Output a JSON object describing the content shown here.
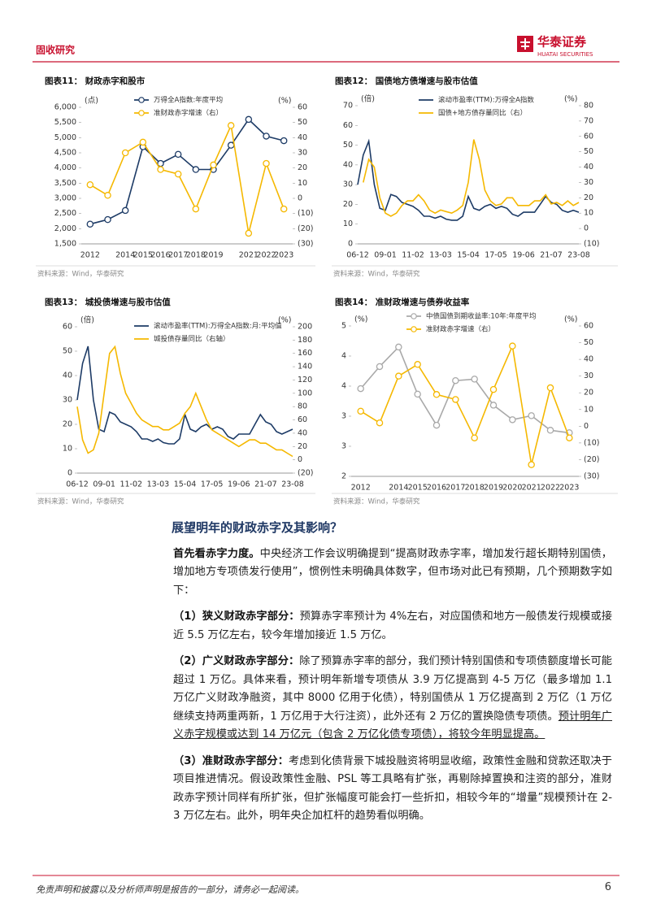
{
  "header": {
    "section": "固收研究",
    "logo_cn": "华泰证券",
    "logo_en": "HUATAI SECURITIES"
  },
  "chart_data": [
    {
      "type": "line",
      "title": "图表11：  财政赤字和股市",
      "y_unit": "(点)",
      "y2_unit": "(%)",
      "marker": true,
      "categories": [
        "2012",
        null,
        "2014",
        "2015",
        "2016",
        "2017",
        "2018",
        "2019",
        null,
        "2021",
        "2022",
        "2023"
      ],
      "series": [
        {
          "name": "万得全A指数:年度平均",
          "color": "#1d3b66",
          "values": [
            2150,
            2300,
            2600,
            4700,
            4150,
            4450,
            3950,
            3950,
            4750,
            5600,
            5050,
            4900
          ]
        },
        {
          "name": "准财政赤字增速（右）",
          "color": "#f5b800",
          "axis": "y2",
          "values": [
            9,
            2,
            30,
            37,
            19,
            16,
            -7,
            22,
            48,
            -23,
            23,
            -7
          ]
        }
      ],
      "ylim": [
        1500,
        6000
      ],
      "yticks": [
        {
          "value": 1500,
          "label": "1,500"
        },
        {
          "value": 2000,
          "label": "2,000"
        },
        {
          "value": 2500,
          "label": "2,500"
        },
        {
          "value": 3000,
          "label": "3,000"
        },
        {
          "value": 3500,
          "label": "3,500"
        },
        {
          "value": 4000,
          "label": "4,000"
        },
        {
          "value": 4500,
          "label": "4,500"
        },
        {
          "value": 5000,
          "label": "5,000"
        },
        {
          "value": 5500,
          "label": "5,500"
        },
        {
          "value": 6000,
          "label": "6,000"
        }
      ],
      "y2lim": [
        -30,
        60
      ],
      "y2ticks": [
        {
          "value": -30,
          "label": "(30)"
        },
        {
          "value": -20,
          "label": "(20)"
        },
        {
          "value": -10,
          "label": "(10)"
        },
        0,
        10,
        20,
        30,
        40,
        50,
        60
      ],
      "source": "资料来源：Wind，华泰研究"
    },
    {
      "type": "line",
      "title": "图表12：  国债地方债增速与股市估值",
      "y_unit": "(倍)",
      "y2_unit": "(%)",
      "marker": false,
      "categories": [
        "06-12",
        null,
        null,
        null,
        null,
        "09-01",
        null,
        null,
        null,
        null,
        "11-02",
        null,
        null,
        null,
        null,
        "13-03",
        null,
        null,
        null,
        null,
        "15-04",
        null,
        null,
        null,
        null,
        "17-05",
        null,
        null,
        null,
        null,
        "19-06",
        null,
        null,
        null,
        null,
        "21-07",
        null,
        null,
        null,
        null,
        "23-08"
      ],
      "series": [
        {
          "name": "滚动市盈率(TTM):万得全A指数",
          "color": "#1d3b66",
          "values": [
            30,
            45,
            52,
            30,
            18,
            17,
            25,
            24,
            21,
            20,
            19,
            17,
            14,
            14,
            13,
            14,
            12.5,
            12,
            12,
            14,
            24,
            18,
            17,
            19,
            20,
            18,
            19,
            18,
            15,
            14,
            16,
            16,
            16,
            20,
            24,
            21,
            20,
            17,
            16,
            17,
            16
          ]
        },
        {
          "name": "国债+地方债存量同比（右）",
          "color": "#f5b800",
          "axis": "y2",
          "values": [
            null,
            30,
            45,
            40,
            20,
            10,
            8,
            10,
            15,
            18,
            18,
            22,
            18,
            12,
            10,
            12,
            11,
            10,
            12,
            15,
            30,
            58,
            45,
            25,
            18,
            15,
            16,
            20,
            20,
            15,
            15,
            15,
            18,
            18,
            22,
            16,
            17,
            15,
            18,
            15,
            17
          ]
        }
      ],
      "ylim": [
        0,
        70
      ],
      "yticks": [
        0,
        10,
        20,
        30,
        40,
        50,
        60,
        70
      ],
      "y2lim": [
        -10,
        80
      ],
      "y2ticks": [
        {
          "value": -10,
          "label": "(10)"
        },
        0,
        10,
        20,
        30,
        40,
        50,
        60,
        70,
        80
      ],
      "source": "资料来源：Wind，华泰研究"
    },
    {
      "type": "line",
      "title": "图表13：  城投债增速与股市估值",
      "y_unit": "(倍)",
      "y2_unit": "(%)",
      "marker": false,
      "categories": [
        "06-12",
        null,
        null,
        null,
        null,
        "09-01",
        null,
        null,
        null,
        null,
        "11-02",
        null,
        null,
        null,
        null,
        "13-03",
        null,
        null,
        null,
        null,
        "15-04",
        null,
        null,
        null,
        null,
        "17-05",
        null,
        null,
        null,
        null,
        "19-06",
        null,
        null,
        null,
        null,
        "21-07",
        null,
        null,
        null,
        null,
        "23-08"
      ],
      "series": [
        {
          "name": "滚动市盈率(TTM):万得全A指数:月:平均值",
          "color": "#1d3b66",
          "values": [
            30,
            45,
            52,
            30,
            18,
            17,
            25,
            24,
            21,
            20,
            19,
            17,
            14,
            14,
            13,
            14,
            12.5,
            12,
            12,
            14,
            24,
            18,
            17,
            19,
            20,
            18,
            19,
            18,
            15,
            14,
            16,
            16,
            16,
            20,
            24,
            21,
            20,
            17,
            16,
            17,
            18
          ]
        },
        {
          "name": "城投债存量同比（右轴）",
          "color": "#f5b800",
          "axis": "y2",
          "values": [
            80,
            30,
            10,
            15,
            40,
            100,
            160,
            170,
            130,
            100,
            85,
            70,
            60,
            55,
            50,
            50,
            45,
            45,
            50,
            55,
            70,
            80,
            100,
            80,
            60,
            45,
            40,
            35,
            30,
            25,
            20,
            25,
            30,
            30,
            25,
            25,
            20,
            15,
            15,
            10,
            5
          ]
        }
      ],
      "ylim": [
        0,
        60
      ],
      "yticks": [
        0,
        10,
        20,
        30,
        40,
        50,
        60
      ],
      "y2lim": [
        -20,
        200
      ],
      "y2ticks": [
        {
          "value": -20,
          "label": "(20)"
        },
        0,
        20,
        40,
        60,
        80,
        100,
        120,
        140,
        160,
        180,
        200
      ],
      "source": "资料来源：Wind，华泰研究"
    },
    {
      "type": "line",
      "title": "图表14：  准财政增速与债券收益率",
      "y_unit": "(%)",
      "y2_unit": "(%)",
      "marker": true,
      "categories": [
        "2012",
        null,
        "2014",
        "2015",
        "2016",
        "2017",
        "2018",
        "2019",
        "2020",
        "2021",
        "2022",
        "2023"
      ],
      "series": [
        {
          "name": "中债国债到期收益率:10年:年度平均",
          "color": "#a9a9a9",
          "values": [
            3.75,
            4.19,
            4.58,
            3.64,
            3.02,
            3.91,
            3.94,
            3.42,
            3.13,
            3.21,
            2.92,
            2.87
          ]
        },
        {
          "name": "准财政赤字增速（右）",
          "color": "#f5b800",
          "axis": "y2",
          "values": [
            9,
            2,
            30,
            37,
            19,
            16,
            -7,
            22,
            48,
            -23,
            23,
            -7
          ]
        }
      ],
      "ylim": [
        2,
        5
      ],
      "yticks": [
        2,
        {
          "value": 2.6,
          "label": "3"
        },
        {
          "value": 3.2,
          "label": "3"
        },
        {
          "value": 3.8,
          "label": "4"
        },
        {
          "value": 4.4,
          "label": "4"
        },
        5
      ],
      "y2lim": [
        -30,
        60
      ],
      "y2ticks": [
        {
          "value": -30,
          "label": "(30)"
        },
        {
          "value": -20,
          "label": "(20)"
        },
        {
          "value": -10,
          "label": "(10)"
        },
        0,
        10,
        20,
        30,
        40,
        50,
        60
      ],
      "source": "资料来源：Wind，华泰研究"
    }
  ],
  "body": {
    "heading": "展望明年的财政赤字及其影响？",
    "paragraphs": [
      {
        "lead": "首先看赤字力度。",
        "text": "中央经济工作会议明确提到“提高财政赤字率，增加发行超长期特别国债，增加地方专项债发行使用”，惯例性未明确具体数字，但市场对此已有预期，几个预期数字如下："
      },
      {
        "lead": "（1）狭义财政赤字部分：",
        "text": "预算赤字率预计为 4%左右，对应国债和地方一般债发行规模或接近 5.5 万亿左右，较今年增加接近 1.5 万亿。"
      },
      {
        "lead": "（2）广义财政赤字部分：",
        "text": "除了预算赤字率的部分，我们预计特别国债和专项债额度增长可能超过 1 万亿。具体来看，预计明年新增专项债从 3.9 万亿提高到 4-5 万亿（最多增加 1.1 万亿广义财政净融资，其中 8000 亿用于化债），特别国债从 1 万亿提高到 2 万亿（1 万亿继续支持两重两新，1 万亿用于大行注资），此外还有 2 万亿的置换隐债专项债。",
        "underline": "预计明年广义赤字规模或达到 14 万亿元（包含 2 万亿化债专项债），将较今年明显提高。"
      },
      {
        "lead": "（3）准财政赤字部分：",
        "text": "考虑到化债背景下城投融资将明显收缩，政策性金融和贷款还取决于项目推进情况。假设政策性金融、PSL 等工具略有扩张，再剔除掉置换和注资的部分，准财政赤字预计同样有所扩张，但扩张幅度可能会打一些折扣，相较今年的“增量”规模预计在 2-3 万亿左右。此外，明年央企加杠杆的趋势看似明确。"
      }
    ]
  },
  "footer": {
    "disclaimer": "免责声明和披露以及分析师声明是报告的一部分，请务必一起阅读。",
    "page": 6
  }
}
